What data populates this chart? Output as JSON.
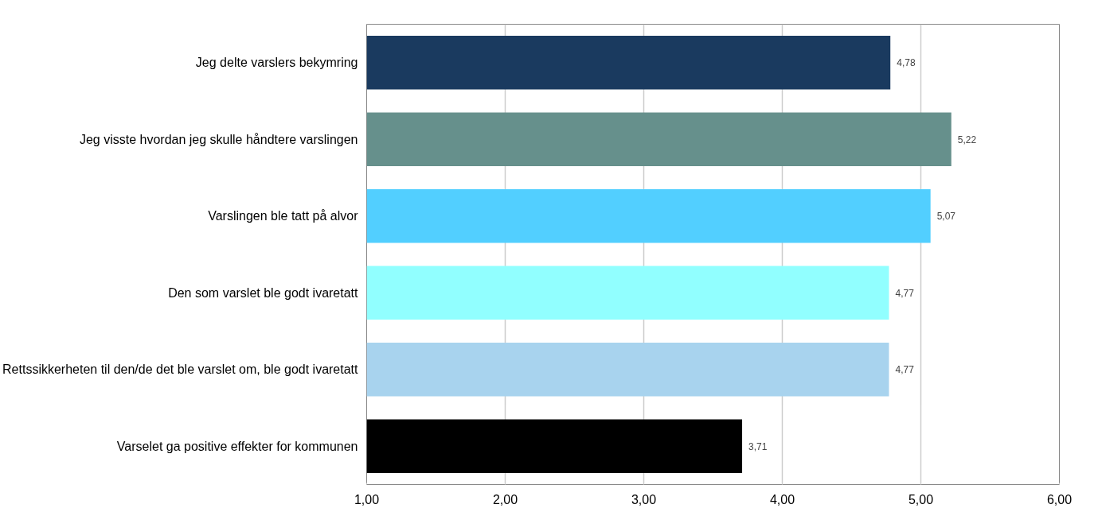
{
  "chart_data": {
    "type": "bar",
    "orientation": "horizontal",
    "categories": [
      "Jeg delte varslers bekymring",
      "Jeg visste hvordan jeg skulle håndtere varslingen",
      "Varslingen ble tatt på alvor",
      "Den som varslet ble godt ivaretatt",
      "Rettssikkerheten til den/de det ble varslet om, ble godt ivaretatt",
      "Varselet ga positive effekter for kommunen"
    ],
    "values": [
      4.78,
      5.22,
      5.07,
      4.77,
      4.77,
      3.71
    ],
    "colors": [
      "#1a3a5f",
      "#66908c",
      "#52cfff",
      "#91ffff",
      "#a8d3ee",
      "#000000"
    ],
    "value_labels": [
      "4,78",
      "5,22",
      "5,07",
      "4,77",
      "4,77",
      "3,71"
    ],
    "xlim": [
      1,
      6
    ],
    "xticks": [
      {
        "value": 1,
        "label": "1,00"
      },
      {
        "value": 2,
        "label": "2,00"
      },
      {
        "value": 3,
        "label": "3,00"
      },
      {
        "value": 4,
        "label": "4,00"
      },
      {
        "value": 5,
        "label": "5,00"
      },
      {
        "value": 6,
        "label": "6,00"
      }
    ],
    "grid": "x"
  }
}
